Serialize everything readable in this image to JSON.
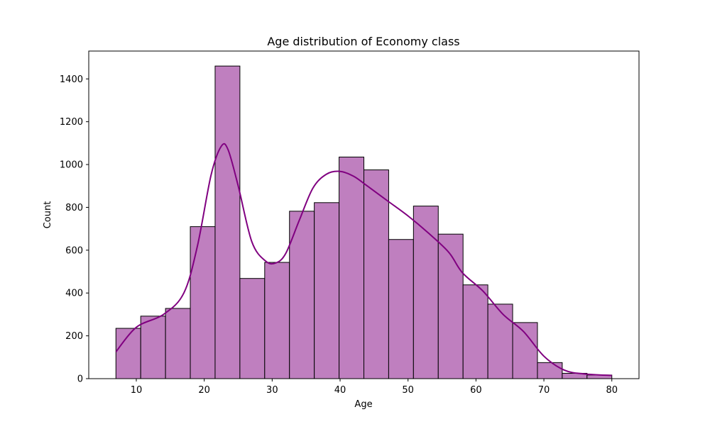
{
  "chart_data": {
    "type": "histogram",
    "title": "Age distribution of Economy class",
    "xlabel": "Age",
    "ylabel": "Count",
    "xlim": [
      3,
      84
    ],
    "ylim": [
      0,
      1530
    ],
    "x_ticks": [
      10,
      20,
      30,
      40,
      50,
      60,
      70,
      80
    ],
    "y_ticks": [
      0,
      200,
      400,
      600,
      800,
      1000,
      1200,
      1400
    ],
    "grid": false,
    "legend": "none",
    "bin_edges": [
      7,
      10.65,
      14.3,
      17.95,
      21.6,
      25.25,
      28.9,
      32.55,
      36.2,
      39.85,
      43.5,
      47.15,
      50.8,
      54.45,
      58.1,
      61.75,
      65.4,
      69.05,
      72.7,
      76.35,
      80
    ],
    "counts": [
      235,
      292,
      328,
      710,
      1460,
      468,
      543,
      782,
      822,
      1035,
      975,
      650,
      806,
      675,
      438,
      348,
      262,
      75,
      25,
      17
    ],
    "bar_color": "#bf7fbf",
    "bar_edge_color": "#000000",
    "kde": {
      "color": "#800080",
      "x": [
        7,
        10,
        14,
        17,
        19,
        21,
        22.5,
        23.5,
        25,
        27,
        29,
        30.5,
        32,
        34,
        36,
        38,
        40,
        42,
        44,
        47,
        50,
        53,
        56,
        58,
        61,
        64,
        67,
        70,
        73,
        76,
        80
      ],
      "y": [
        125,
        240,
        300,
        400,
        620,
        950,
        1085,
        1070,
        900,
        640,
        550,
        540,
        585,
        740,
        890,
        955,
        968,
        945,
        900,
        830,
        760,
        680,
        590,
        495,
        410,
        300,
        220,
        105,
        40,
        22,
        15
      ]
    }
  }
}
